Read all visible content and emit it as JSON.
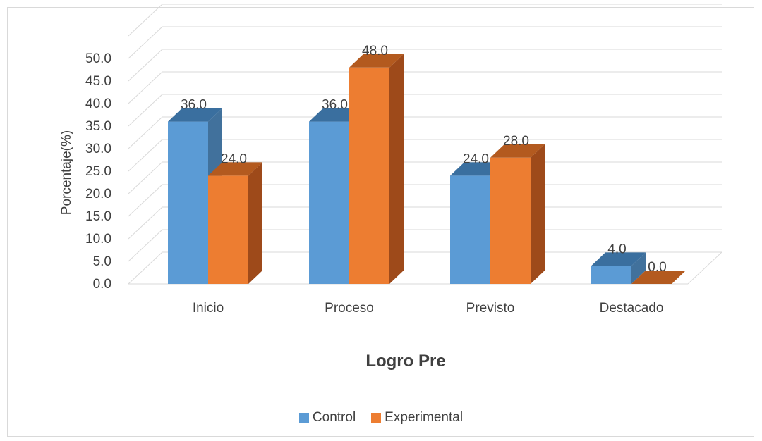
{
  "chart_data": {
    "type": "bar",
    "title": "",
    "xlabel": "Logro Pre",
    "ylabel": "Porcentaje(%)",
    "categories": [
      "Inicio",
      "Proceso",
      "Previsto",
      "Destacado"
    ],
    "series": [
      {
        "name": "Control",
        "values": [
          36.0,
          36.0,
          24.0,
          4.0
        ],
        "color": "#5b9bd5",
        "top_color": "#3a6f9f",
        "side_color": "#41719c"
      },
      {
        "name": "Experimental",
        "values": [
          24.0,
          48.0,
          28.0,
          0.0
        ],
        "color": "#ed7d31",
        "top_color": "#b35a1f",
        "side_color": "#9e4a1a"
      }
    ],
    "yticks": [
      "0.0",
      "5.0",
      "10.0",
      "15.0",
      "20.0",
      "25.0",
      "30.0",
      "35.0",
      "40.0",
      "45.0",
      "50.0"
    ],
    "ylim": [
      0,
      55
    ],
    "data_labels": [
      [
        "36.0",
        "36.0",
        "24.0",
        "4.0"
      ],
      [
        "24.0",
        "48.0",
        "28.0",
        "0.0"
      ]
    ],
    "grid": true,
    "legend_position": "bottom",
    "style": "3d-clustered-column"
  }
}
